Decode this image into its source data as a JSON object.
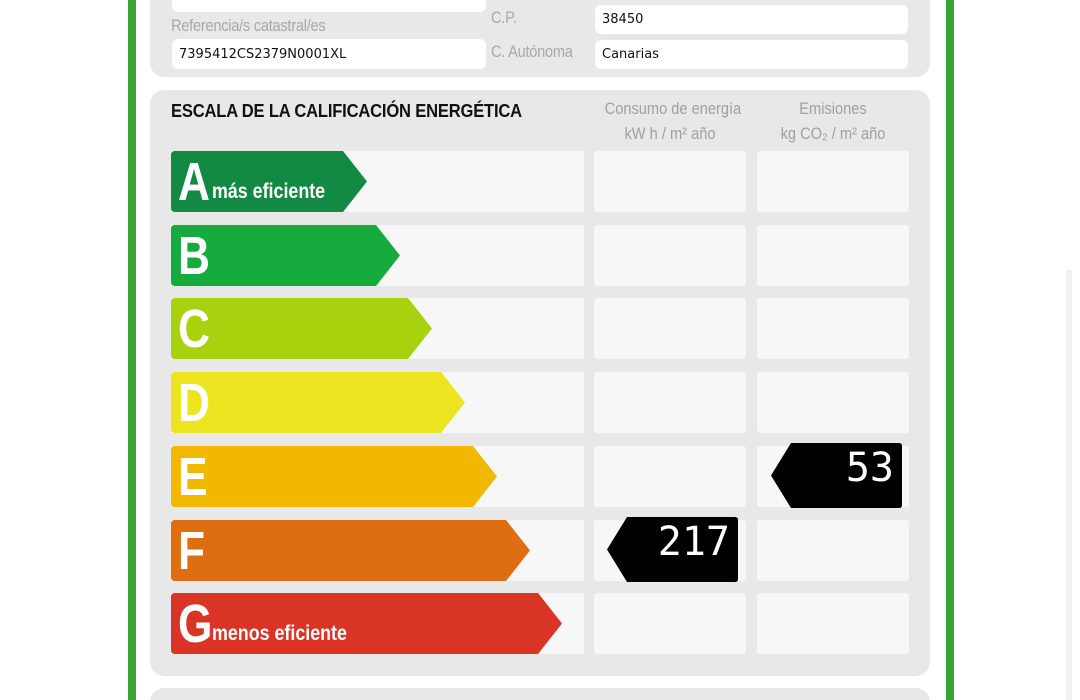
{
  "header_fields": {
    "referencia_label": "Referencia/s catastral/es",
    "referencia_value": "7395412CS2379N0001XL",
    "cp_label": "C.P.",
    "cp_value": "38450",
    "autonoma_label": "C. Autónoma",
    "autonoma_value": "Canarias"
  },
  "scale": {
    "title": "ESCALA DE LA CALIFICACIÓN ENERGÉTICA",
    "col_consumo_line1": "Consumo de energía",
    "col_consumo_line2": "kW h / m² año",
    "col_emisiones_line1": "Emisiones",
    "col_emisiones_line2": "kg CO₂ / m² año",
    "ratings": [
      {
        "letter": "A",
        "caption": "más eficiente",
        "color": "#138a43"
      },
      {
        "letter": "B",
        "caption": "",
        "color": "#16ab3d"
      },
      {
        "letter": "C",
        "caption": "",
        "color": "#a9d20e"
      },
      {
        "letter": "D",
        "caption": "",
        "color": "#ece421"
      },
      {
        "letter": "E",
        "caption": "",
        "color": "#f2b800"
      },
      {
        "letter": "F",
        "caption": "",
        "color": "#de6e12"
      },
      {
        "letter": "G",
        "caption": "menos eficiente",
        "color": "#d93426"
      }
    ],
    "consumo": {
      "rating": "F",
      "value": "217"
    },
    "emisiones": {
      "rating": "E",
      "value": "53"
    }
  }
}
